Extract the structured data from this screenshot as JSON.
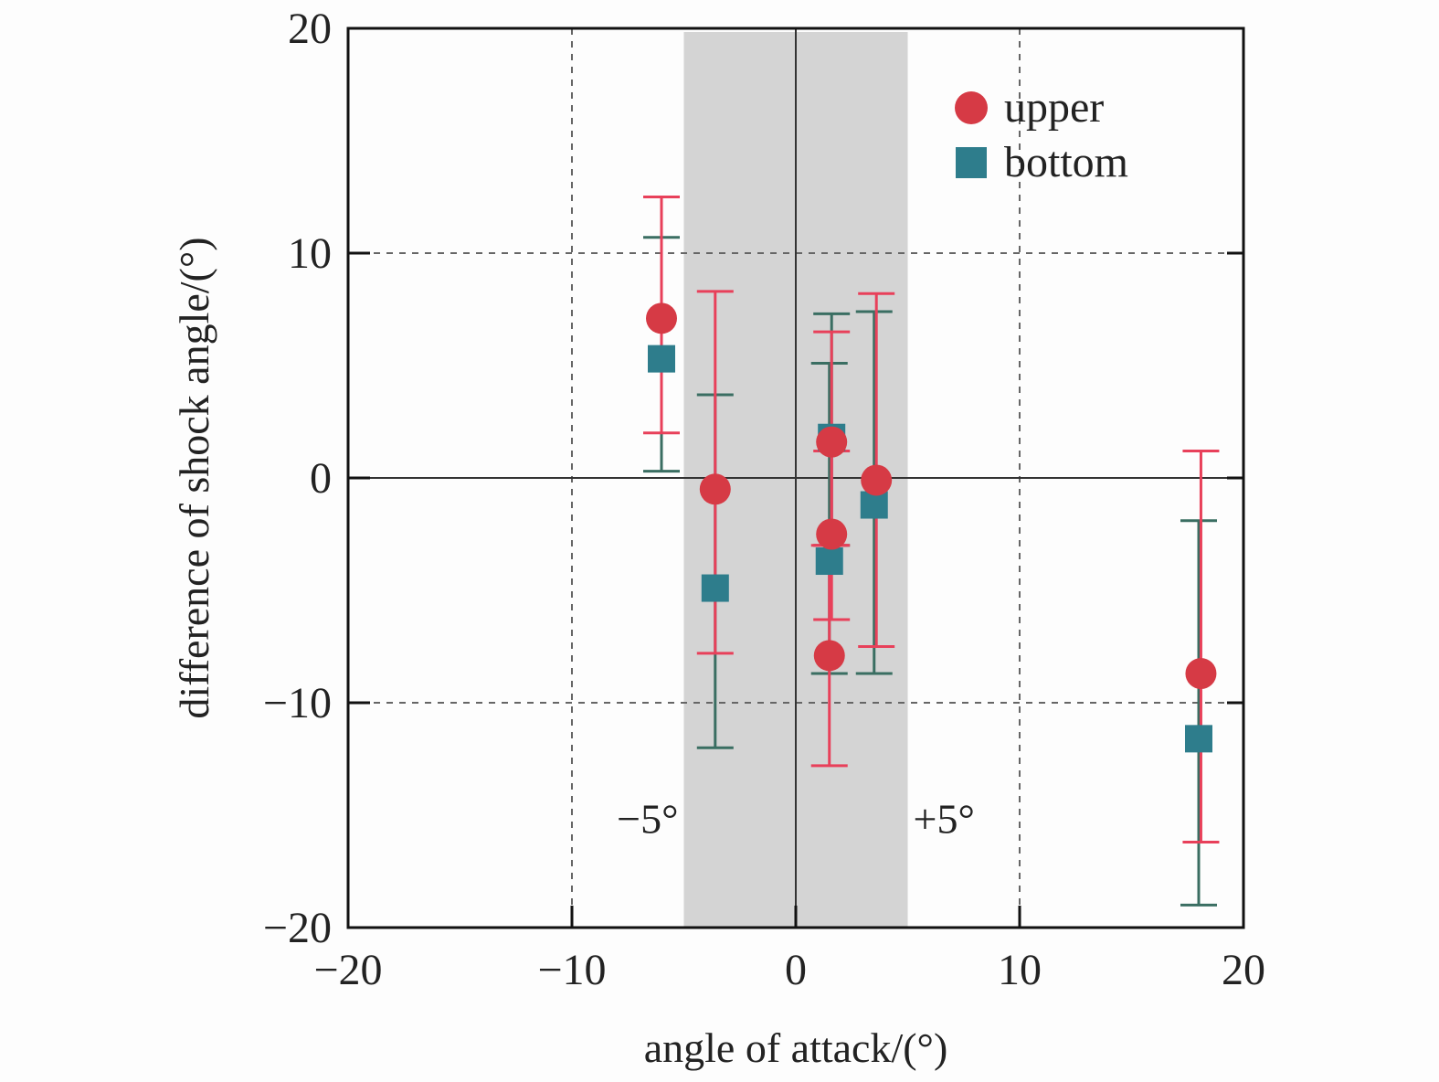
{
  "chart_data": {
    "type": "scatter",
    "xlabel": "angle of attack/(°)",
    "ylabel": "difference of shock angle/(°)",
    "xlim": [
      -20,
      20
    ],
    "ylim": [
      -20,
      20
    ],
    "xticks": [
      -20,
      -10,
      0,
      10,
      20
    ],
    "yticks": [
      -20,
      -10,
      0,
      10,
      20
    ],
    "x_tick_labels": [
      "−20",
      "−10",
      "0",
      "10",
      "20"
    ],
    "y_tick_labels": [
      "−20",
      "−10",
      "0",
      "10",
      "20"
    ],
    "grid": true,
    "legend_position": "top-right",
    "shaded_band": {
      "x_range": [
        -5,
        5
      ],
      "left_label": "−5°",
      "right_label": "+5°",
      "color": "#d4d4d4"
    },
    "series": [
      {
        "name": "upper",
        "marker": "circle",
        "color": "#d63a45",
        "errorbar_color": "#e8405a",
        "points": [
          {
            "x": -6.0,
            "y": 7.1,
            "ylow": 2.0,
            "yhigh": 12.5
          },
          {
            "x": -3.6,
            "y": -0.5,
            "ylow": -7.8,
            "yhigh": 8.3
          },
          {
            "x": 1.6,
            "y": 1.6,
            "ylow": -3.0,
            "yhigh": 6.5
          },
          {
            "x": 1.6,
            "y": -2.5,
            "ylow": -6.3,
            "yhigh": 1.2
          },
          {
            "x": 1.5,
            "y": -7.9,
            "ylow": -12.8,
            "yhigh": -3.0
          },
          {
            "x": 3.6,
            "y": -0.1,
            "ylow": -7.5,
            "yhigh": 8.2
          },
          {
            "x": 18.1,
            "y": -8.7,
            "ylow": -16.2,
            "yhigh": 1.2
          }
        ]
      },
      {
        "name": "bottom",
        "marker": "square",
        "color": "#2e7d8c",
        "errorbar_color": "#3a6e62",
        "points": [
          {
            "x": -6.0,
            "y": 5.3,
            "ylow": 0.3,
            "yhigh": 10.7
          },
          {
            "x": -3.6,
            "y": -4.9,
            "ylow": -12.0,
            "yhigh": 3.7
          },
          {
            "x": 1.6,
            "y": 1.8,
            "ylow": -3.0,
            "yhigh": 7.3
          },
          {
            "x": 1.5,
            "y": -3.7,
            "ylow": -8.7,
            "yhigh": 5.1
          },
          {
            "x": 3.5,
            "y": -1.2,
            "ylow": -8.7,
            "yhigh": 7.4
          },
          {
            "x": 18.0,
            "y": -11.6,
            "ylow": -19.0,
            "yhigh": -1.9
          }
        ]
      }
    ]
  }
}
